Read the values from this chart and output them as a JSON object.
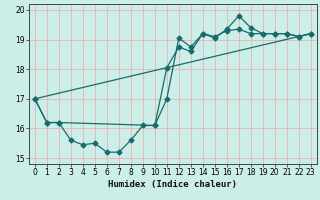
{
  "xlabel": "Humidex (Indice chaleur)",
  "bg_color": "#cceee8",
  "grid_color": "#e8b8b8",
  "line_color": "#1a6b6b",
  "xlim": [
    -0.5,
    23.5
  ],
  "ylim": [
    14.8,
    20.2
  ],
  "xticks": [
    0,
    1,
    2,
    3,
    4,
    5,
    6,
    7,
    8,
    9,
    10,
    11,
    12,
    13,
    14,
    15,
    16,
    17,
    18,
    19,
    20,
    21,
    22,
    23
  ],
  "yticks": [
    15,
    16,
    17,
    18,
    19,
    20
  ],
  "line1_x": [
    0,
    1,
    2,
    3,
    4,
    5,
    6,
    7,
    8,
    9,
    10,
    11,
    12,
    13,
    14,
    15,
    16,
    17,
    18,
    19,
    20,
    21,
    22,
    23
  ],
  "line1_y": [
    17.0,
    16.2,
    16.2,
    15.6,
    15.45,
    15.5,
    15.2,
    15.2,
    15.6,
    16.1,
    16.1,
    17.0,
    19.05,
    18.75,
    19.2,
    19.05,
    19.35,
    19.8,
    19.4,
    19.2,
    19.2,
    19.2,
    19.1,
    19.2
  ],
  "line2_x": [
    0,
    1,
    2,
    10,
    11,
    12,
    13,
    14,
    15,
    16,
    17,
    18,
    19,
    20,
    21,
    22,
    23
  ],
  "line2_y": [
    17.0,
    16.2,
    16.2,
    16.1,
    18.05,
    18.75,
    18.6,
    19.2,
    19.1,
    19.3,
    19.35,
    19.2,
    19.2,
    19.2,
    19.2,
    19.1,
    19.2
  ],
  "line3_x": [
    0,
    23
  ],
  "line3_y": [
    17.0,
    19.2
  ]
}
